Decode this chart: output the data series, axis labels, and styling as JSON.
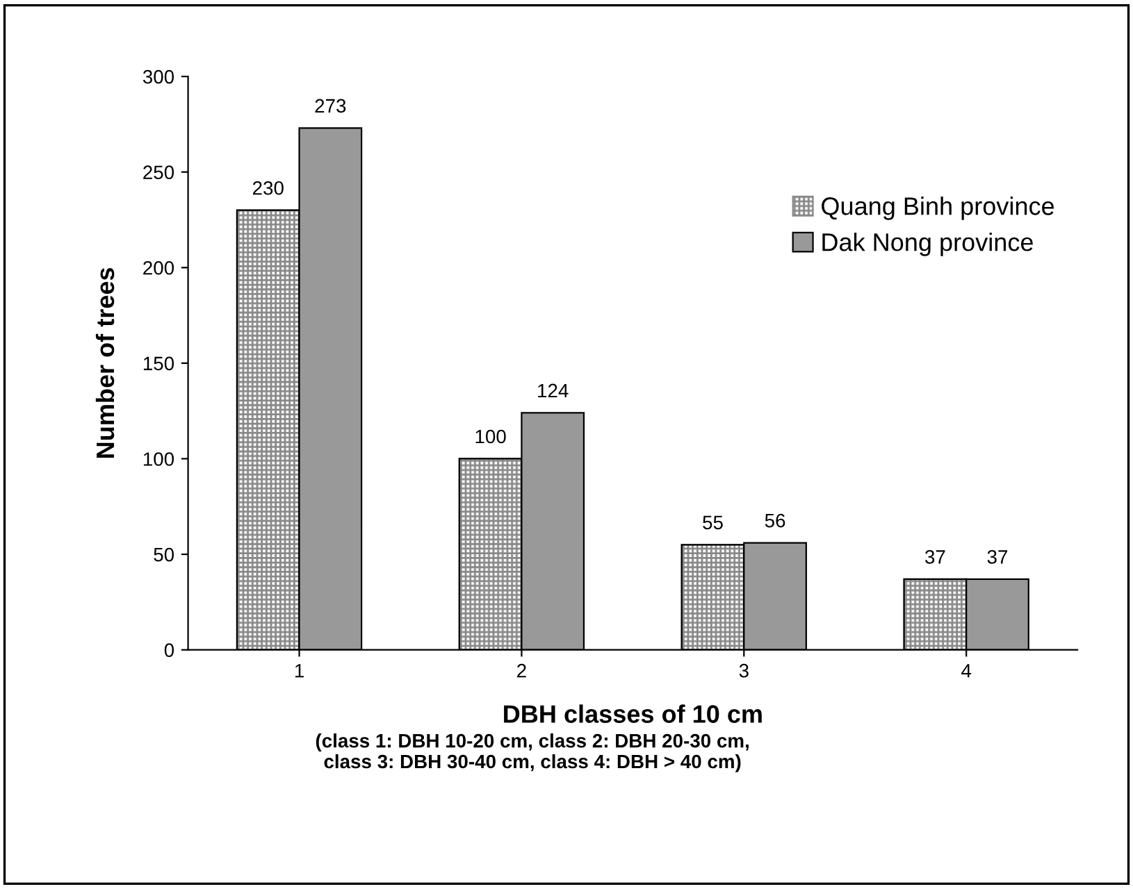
{
  "chart_data": {
    "type": "bar",
    "xlabel": "DBH classes of 10 cm",
    "ylabel": "Number of trees",
    "annotations": [
      "(class 1: DBH 10-20 cm, class 2: DBH 20-30 cm,\nclass 3: DBH 30-40 cm, class 4: DBH > 40 cm)"
    ],
    "categories": [
      "1",
      "2",
      "3",
      "4"
    ],
    "series": [
      {
        "name": "Quang Binh province",
        "color": "#888888",
        "values": [
          230,
          100,
          55,
          37
        ]
      },
      {
        "name": "Dak Nong province",
        "color": "#999999",
        "values": [
          273,
          124,
          56,
          37
        ]
      }
    ],
    "ylim": [
      0,
      300
    ],
    "yticks": [
      0,
      50,
      100,
      150,
      200,
      250,
      300
    ],
    "data_labels": true,
    "grid": false,
    "legend": "top right"
  }
}
